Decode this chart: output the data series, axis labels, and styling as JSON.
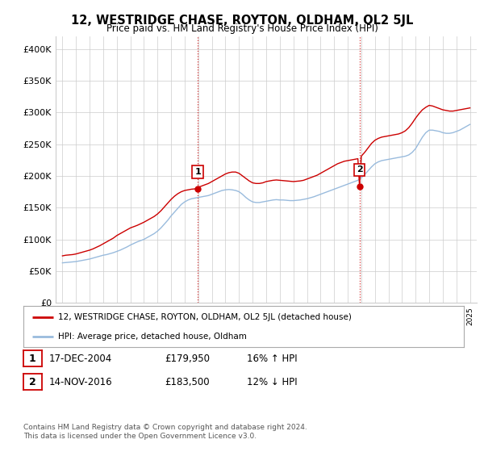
{
  "title": "12, WESTRIDGE CHASE, ROYTON, OLDHAM, OL2 5JL",
  "subtitle": "Price paid vs. HM Land Registry's House Price Index (HPI)",
  "ylabel_ticks": [
    "£0",
    "£50K",
    "£100K",
    "£150K",
    "£200K",
    "£250K",
    "£300K",
    "£350K",
    "£400K"
  ],
  "ytick_values": [
    0,
    50000,
    100000,
    150000,
    200000,
    250000,
    300000,
    350000,
    400000
  ],
  "ylim": [
    0,
    420000
  ],
  "xlim_start": 1994.5,
  "xlim_end": 2025.5,
  "line1_color": "#cc0000",
  "line2_color": "#99bbdd",
  "vline_color": "#cc0000",
  "sale1_x": 2004.96,
  "sale1_y": 179950,
  "sale2_x": 2016.87,
  "sale2_y": 183500,
  "legend_label1": "12, WESTRIDGE CHASE, ROYTON, OLDHAM, OL2 5JL (detached house)",
  "legend_label2": "HPI: Average price, detached house, Oldham",
  "table_row1": [
    "1",
    "17-DEC-2004",
    "£179,950",
    "16% ↑ HPI"
  ],
  "table_row2": [
    "2",
    "14-NOV-2016",
    "£183,500",
    "12% ↓ HPI"
  ],
  "footnote": "Contains HM Land Registry data © Crown copyright and database right 2024.\nThis data is licensed under the Open Government Licence v3.0.",
  "background_color": "#ffffff",
  "grid_color": "#cccccc",
  "hpi_line": {
    "years": [
      1995.0,
      1995.25,
      1995.5,
      1995.75,
      1996.0,
      1996.25,
      1996.5,
      1996.75,
      1997.0,
      1997.25,
      1997.5,
      1997.75,
      1998.0,
      1998.25,
      1998.5,
      1998.75,
      1999.0,
      1999.25,
      1999.5,
      1999.75,
      2000.0,
      2000.25,
      2000.5,
      2000.75,
      2001.0,
      2001.25,
      2001.5,
      2001.75,
      2002.0,
      2002.25,
      2002.5,
      2002.75,
      2003.0,
      2003.25,
      2003.5,
      2003.75,
      2004.0,
      2004.25,
      2004.5,
      2004.75,
      2005.0,
      2005.25,
      2005.5,
      2005.75,
      2006.0,
      2006.25,
      2006.5,
      2006.75,
      2007.0,
      2007.25,
      2007.5,
      2007.75,
      2008.0,
      2008.25,
      2008.5,
      2008.75,
      2009.0,
      2009.25,
      2009.5,
      2009.75,
      2010.0,
      2010.25,
      2010.5,
      2010.75,
      2011.0,
      2011.25,
      2011.5,
      2011.75,
      2012.0,
      2012.25,
      2012.5,
      2012.75,
      2013.0,
      2013.25,
      2013.5,
      2013.75,
      2014.0,
      2014.25,
      2014.5,
      2014.75,
      2015.0,
      2015.25,
      2015.5,
      2015.75,
      2016.0,
      2016.25,
      2016.5,
      2016.75,
      2017.0,
      2017.25,
      2017.5,
      2017.75,
      2018.0,
      2018.25,
      2018.5,
      2018.75,
      2019.0,
      2019.25,
      2019.5,
      2019.75,
      2020.0,
      2020.25,
      2020.5,
      2020.75,
      2021.0,
      2021.25,
      2021.5,
      2021.75,
      2022.0,
      2022.25,
      2022.5,
      2022.75,
      2023.0,
      2023.25,
      2023.5,
      2023.75,
      2024.0,
      2024.25,
      2024.5,
      2024.75,
      2025.0
    ],
    "values": [
      63000,
      63500,
      64000,
      64500,
      65000,
      66000,
      67000,
      68000,
      69000,
      70500,
      72000,
      73500,
      75000,
      76000,
      77500,
      79000,
      81000,
      83000,
      85500,
      88000,
      91000,
      93500,
      96000,
      98000,
      100000,
      103000,
      106000,
      109000,
      113000,
      118000,
      124000,
      130000,
      137000,
      143000,
      149000,
      155000,
      159000,
      162000,
      164000,
      165000,
      166000,
      167000,
      168000,
      169000,
      171000,
      173000,
      175000,
      177000,
      178000,
      178500,
      178000,
      177000,
      175000,
      171000,
      166000,
      162000,
      159000,
      158000,
      158000,
      159000,
      160000,
      161000,
      162000,
      162500,
      162000,
      162000,
      161500,
      161000,
      161000,
      161500,
      162000,
      163000,
      164000,
      165500,
      167000,
      169000,
      171000,
      173000,
      175000,
      177000,
      179000,
      181000,
      183000,
      185000,
      187000,
      189000,
      191000,
      193000,
      197000,
      202000,
      208000,
      214000,
      219000,
      222000,
      224000,
      225000,
      226000,
      227000,
      228000,
      229000,
      230000,
      231000,
      233000,
      237000,
      243000,
      252000,
      261000,
      268000,
      272000,
      272000,
      271000,
      270000,
      268000,
      267000,
      267000,
      268000,
      270000,
      272000,
      275000,
      278000,
      281000
    ]
  },
  "price_line": {
    "years": [
      1995.0,
      1995.25,
      1995.5,
      1995.75,
      1996.0,
      1996.25,
      1996.5,
      1996.75,
      1997.0,
      1997.25,
      1997.5,
      1997.75,
      1998.0,
      1998.25,
      1998.5,
      1998.75,
      1999.0,
      1999.25,
      1999.5,
      1999.75,
      2000.0,
      2000.25,
      2000.5,
      2000.75,
      2001.0,
      2001.25,
      2001.5,
      2001.75,
      2002.0,
      2002.25,
      2002.5,
      2002.75,
      2003.0,
      2003.25,
      2003.5,
      2003.75,
      2004.0,
      2004.25,
      2004.5,
      2004.75,
      2004.96,
      2005.0,
      2005.25,
      2005.5,
      2005.75,
      2006.0,
      2006.25,
      2006.5,
      2006.75,
      2007.0,
      2007.25,
      2007.5,
      2007.75,
      2008.0,
      2008.25,
      2008.5,
      2008.75,
      2009.0,
      2009.25,
      2009.5,
      2009.75,
      2010.0,
      2010.25,
      2010.5,
      2010.75,
      2011.0,
      2011.25,
      2011.5,
      2011.75,
      2012.0,
      2012.25,
      2012.5,
      2012.75,
      2013.0,
      2013.25,
      2013.5,
      2013.75,
      2014.0,
      2014.25,
      2014.5,
      2014.75,
      2015.0,
      2015.25,
      2015.5,
      2015.75,
      2016.0,
      2016.25,
      2016.5,
      2016.75,
      2016.87,
      2017.0,
      2017.25,
      2017.5,
      2017.75,
      2018.0,
      2018.25,
      2018.5,
      2018.75,
      2019.0,
      2019.25,
      2019.5,
      2019.75,
      2020.0,
      2020.25,
      2020.5,
      2020.75,
      2021.0,
      2021.25,
      2021.5,
      2021.75,
      2022.0,
      2022.25,
      2022.5,
      2022.75,
      2023.0,
      2023.25,
      2023.5,
      2023.75,
      2024.0,
      2024.25,
      2024.5,
      2024.75,
      2025.0
    ],
    "values": [
      74000,
      75000,
      75500,
      76000,
      77000,
      78500,
      80000,
      81500,
      83000,
      85000,
      87500,
      90000,
      93000,
      96000,
      99000,
      102000,
      106000,
      109000,
      112000,
      115000,
      118000,
      120000,
      122000,
      124500,
      127000,
      130000,
      133000,
      136000,
      140000,
      145000,
      151000,
      157000,
      163000,
      168000,
      172000,
      175000,
      177000,
      178000,
      179000,
      179500,
      179950,
      182000,
      184000,
      186000,
      188000,
      191000,
      194000,
      197000,
      200000,
      203000,
      205000,
      206000,
      206000,
      204000,
      200000,
      196000,
      192000,
      189000,
      188000,
      188000,
      189000,
      191000,
      192000,
      193000,
      193500,
      193000,
      192500,
      192000,
      191500,
      191000,
      191500,
      192000,
      193000,
      195000,
      197000,
      199000,
      201000,
      204000,
      207000,
      210000,
      213000,
      216000,
      219000,
      221000,
      223000,
      224000,
      225000,
      226000,
      227000,
      183500,
      231000,
      237000,
      244000,
      251000,
      256000,
      259000,
      261000,
      262000,
      263000,
      264000,
      265000,
      266000,
      268000,
      271000,
      276000,
      283000,
      291000,
      298000,
      304000,
      308000,
      311000,
      310000,
      308000,
      306000,
      304000,
      303000,
      302000,
      302000,
      303000,
      304000,
      305000,
      306000,
      307000
    ]
  }
}
